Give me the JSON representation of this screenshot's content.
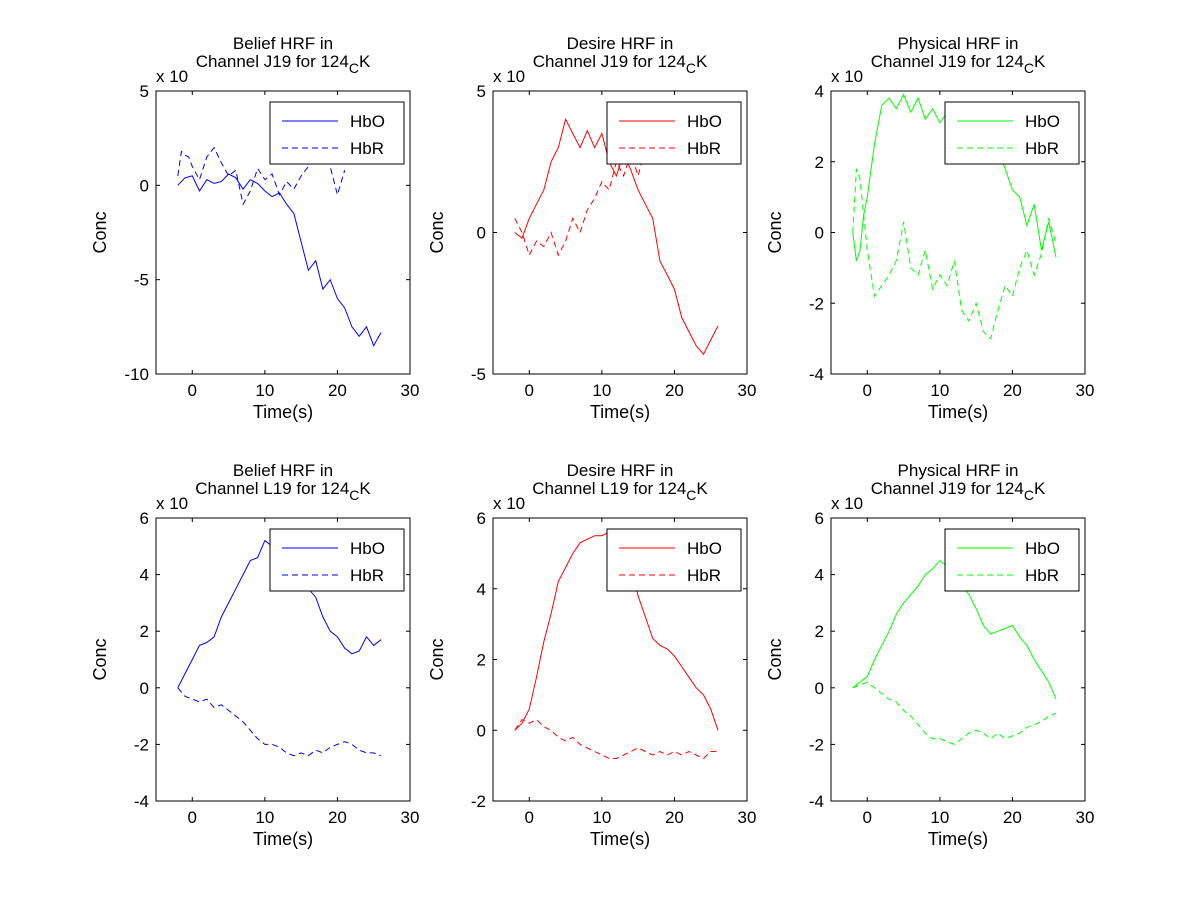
{
  "figure": {
    "background": "#ffffff"
  },
  "chart_data": [
    {
      "type": "line",
      "title": [
        "Belief HRF in",
        "Channel J19 for 124",
        "C",
        "K"
      ],
      "xlabel": "Time(s)",
      "ylabel": "Conc",
      "exponent": "x 10",
      "xlim": [
        -5,
        30
      ],
      "ylim": [
        -10,
        5
      ],
      "xticks": [
        "0",
        "10",
        "20",
        "30"
      ],
      "yticks": [
        "-10",
        "-5",
        "0",
        "5"
      ],
      "xtick_values": [
        0,
        10,
        20,
        30
      ],
      "ytick_values": [
        -10,
        -5,
        0,
        5
      ],
      "legend": "top-right",
      "grid": false,
      "color": "#0000ff",
      "series": [
        {
          "name": "HbO",
          "style": "solid",
          "color": "#0000ff",
          "x": [
            -2,
            -1,
            0,
            1,
            2,
            3,
            4,
            5,
            6,
            7,
            8,
            9,
            10,
            11,
            12,
            13,
            14,
            15,
            16,
            17,
            18,
            19,
            20,
            21,
            22,
            23,
            24,
            25,
            26
          ],
          "y": [
            0.0,
            0.4,
            0.5,
            -0.3,
            0.3,
            0.1,
            0.2,
            0.6,
            0.4,
            -0.2,
            0.3,
            0.1,
            -0.3,
            -0.6,
            -0.4,
            -1.0,
            -1.5,
            -3.0,
            -4.5,
            -4.0,
            -5.5,
            -5.0,
            -6.0,
            -6.5,
            -7.5,
            -8.0,
            -7.5,
            -8.5,
            -7.8
          ]
        },
        {
          "name": "HbR",
          "style": "dashed",
          "color": "#0000ff",
          "x": [
            -2,
            -1.5,
            -1,
            -0.5,
            0,
            1,
            2,
            3,
            4,
            5,
            6,
            7,
            8,
            9,
            10,
            11,
            12,
            13,
            14,
            15,
            16,
            17,
            18,
            19,
            20,
            21
          ],
          "y": [
            0.5,
            1.8,
            1.6,
            1.5,
            1.0,
            0.3,
            1.5,
            2.0,
            1.2,
            0.5,
            0.8,
            -1.0,
            -0.3,
            0.9,
            0.3,
            0.6,
            -0.5,
            0.2,
            -0.2,
            0.5,
            1.0,
            2.0,
            2.5,
            1.0,
            -0.5,
            0.8
          ]
        }
      ]
    },
    {
      "type": "line",
      "title": [
        "Desire HRF in",
        "Channel J19 for 124",
        "C",
        "K"
      ],
      "xlabel": "Time(s)",
      "ylabel": "Conc",
      "exponent": "x 10",
      "xlim": [
        -5,
        30
      ],
      "ylim": [
        -5,
        5
      ],
      "xticks": [
        "0",
        "10",
        "20",
        "30"
      ],
      "yticks": [
        "-5",
        "0",
        "5"
      ],
      "xtick_values": [
        0,
        10,
        20,
        30
      ],
      "ytick_values": [
        -5,
        0,
        5
      ],
      "legend": "top-right",
      "grid": false,
      "color": "#ff0000",
      "series": [
        {
          "name": "HbO",
          "style": "solid",
          "color": "#ff0000",
          "x": [
            -2,
            -1,
            0,
            1,
            2,
            3,
            4,
            5,
            6,
            7,
            8,
            9,
            10,
            11,
            12,
            13,
            14,
            15,
            16,
            17,
            18,
            19,
            20,
            21,
            22,
            23,
            24,
            25,
            26
          ],
          "y": [
            0.0,
            -0.2,
            0.5,
            1.0,
            1.5,
            2.5,
            3.0,
            4.0,
            3.5,
            3.0,
            3.6,
            3.0,
            3.5,
            2.5,
            2.0,
            2.8,
            2.2,
            1.5,
            1.0,
            0.5,
            -1.0,
            -1.5,
            -2.0,
            -3.0,
            -3.5,
            -4.0,
            -4.3,
            -3.8,
            -3.3
          ]
        },
        {
          "name": "HbR",
          "style": "dashed",
          "color": "#ff0000",
          "x": [
            -2,
            -1,
            0,
            1,
            2,
            3,
            4,
            5,
            6,
            7,
            8,
            9,
            10,
            11,
            12,
            13,
            14,
            15,
            16,
            17,
            18,
            19,
            20
          ],
          "y": [
            0.5,
            0.0,
            -0.8,
            -0.3,
            -0.5,
            0.0,
            -0.8,
            -0.3,
            0.5,
            0.0,
            0.8,
            1.2,
            1.8,
            1.5,
            2.5,
            2.0,
            2.8,
            2.0,
            3.0,
            2.5,
            3.2,
            2.5,
            2.8
          ]
        }
      ]
    },
    {
      "type": "line",
      "title": [
        "Physical HRF in",
        "Channel J19 for 124",
        "C",
        "K"
      ],
      "xlabel": "Time(s)",
      "ylabel": "Conc",
      "exponent": "x 10",
      "xlim": [
        -5,
        30
      ],
      "ylim": [
        -4,
        4
      ],
      "xticks": [
        "0",
        "10",
        "20",
        "30"
      ],
      "yticks": [
        "-4",
        "-2",
        "0",
        "2",
        "4"
      ],
      "xtick_values": [
        0,
        10,
        20,
        30
      ],
      "ytick_values": [
        -4,
        -2,
        0,
        2,
        4
      ],
      "legend": "top-right",
      "grid": false,
      "color": "#00ff00",
      "series": [
        {
          "name": "HbO",
          "style": "solid",
          "color": "#00ff00",
          "x": [
            -2,
            -1.5,
            -1,
            -0.5,
            0,
            1,
            2,
            3,
            4,
            5,
            6,
            7,
            8,
            9,
            10,
            11,
            12,
            13,
            14,
            15,
            16,
            17,
            18,
            19,
            20,
            21,
            22,
            23,
            24,
            25,
            26
          ],
          "y": [
            0.0,
            -0.8,
            -0.5,
            0.5,
            1.0,
            2.5,
            3.6,
            3.8,
            3.5,
            3.9,
            3.4,
            3.8,
            3.2,
            3.5,
            3.1,
            3.4,
            2.8,
            3.0,
            2.6,
            2.2,
            2.5,
            2.0,
            2.3,
            1.8,
            1.2,
            1.0,
            0.2,
            0.8,
            -0.5,
            0.3,
            -0.7
          ]
        },
        {
          "name": "HbR",
          "style": "dashed",
          "color": "#00ff00",
          "x": [
            -2,
            -1.5,
            -1,
            -0.5,
            0,
            1,
            2,
            3,
            4,
            5,
            6,
            7,
            8,
            9,
            10,
            11,
            12,
            13,
            14,
            15,
            16,
            17,
            18,
            19,
            20,
            21,
            22,
            23,
            24,
            25,
            26
          ],
          "y": [
            0.0,
            1.8,
            1.5,
            0.5,
            -0.5,
            -1.8,
            -1.5,
            -1.2,
            -0.8,
            0.3,
            -1.0,
            -1.2,
            -0.5,
            -1.6,
            -1.2,
            -1.5,
            -0.8,
            -2.2,
            -2.5,
            -2.0,
            -2.8,
            -3.0,
            -2.2,
            -1.5,
            -1.8,
            -1.0,
            -0.5,
            -1.2,
            -0.6,
            0.4,
            -0.3
          ]
        }
      ]
    },
    {
      "type": "line",
      "title": [
        "Belief HRF in",
        "Channel L19 for 124",
        "C",
        "K"
      ],
      "xlabel": "Time(s)",
      "ylabel": "Conc",
      "exponent": "x 10",
      "xlim": [
        -5,
        30
      ],
      "ylim": [
        -4,
        6
      ],
      "xticks": [
        "0",
        "10",
        "20",
        "30"
      ],
      "yticks": [
        "-4",
        "-2",
        "0",
        "2",
        "4",
        "6"
      ],
      "xtick_values": [
        0,
        10,
        20,
        30
      ],
      "ytick_values": [
        -4,
        -2,
        0,
        2,
        4,
        6
      ],
      "legend": "top-right",
      "grid": false,
      "color": "#0000ff",
      "series": [
        {
          "name": "HbO",
          "style": "solid",
          "color": "#0000ff",
          "x": [
            -2,
            -1,
            0,
            1,
            2,
            3,
            4,
            5,
            6,
            7,
            8,
            9,
            10,
            11,
            12,
            13,
            14,
            15,
            16,
            17,
            18,
            19,
            20,
            21,
            22,
            23,
            24,
            25,
            26
          ],
          "y": [
            0.0,
            0.5,
            1.0,
            1.5,
            1.6,
            1.8,
            2.5,
            3.0,
            3.5,
            4.0,
            4.5,
            4.6,
            5.2,
            5.0,
            5.1,
            4.8,
            4.6,
            4.2,
            3.5,
            3.2,
            2.5,
            2.0,
            1.8,
            1.4,
            1.2,
            1.3,
            1.8,
            1.5,
            1.7
          ]
        },
        {
          "name": "HbR",
          "style": "dashed",
          "color": "#0000ff",
          "x": [
            -2,
            -1,
            0,
            1,
            2,
            3,
            4,
            5,
            6,
            7,
            8,
            9,
            10,
            11,
            12,
            13,
            14,
            15,
            16,
            17,
            18,
            19,
            20,
            21,
            22,
            23,
            24,
            25,
            26
          ],
          "y": [
            0.0,
            -0.3,
            -0.4,
            -0.5,
            -0.4,
            -0.7,
            -0.6,
            -0.8,
            -1.0,
            -1.2,
            -1.5,
            -1.8,
            -2.0,
            -2.0,
            -2.1,
            -2.3,
            -2.4,
            -2.3,
            -2.4,
            -2.2,
            -2.3,
            -2.1,
            -2.0,
            -1.9,
            -2.0,
            -2.2,
            -2.3,
            -2.3,
            -2.4
          ]
        }
      ]
    },
    {
      "type": "line",
      "title": [
        "Desire HRF in",
        "Channel L19 for 124",
        "C",
        "K"
      ],
      "xlabel": "Time(s)",
      "ylabel": "Conc",
      "exponent": "x 10",
      "xlim": [
        -5,
        30
      ],
      "ylim": [
        -2,
        6
      ],
      "xticks": [
        "0",
        "10",
        "20",
        "30"
      ],
      "yticks": [
        "-2",
        "0",
        "2",
        "4",
        "6"
      ],
      "xtick_values": [
        0,
        10,
        20,
        30
      ],
      "ytick_values": [
        -2,
        0,
        2,
        4,
        6
      ],
      "legend": "top-right",
      "grid": false,
      "color": "#ff0000",
      "series": [
        {
          "name": "HbO",
          "style": "solid",
          "color": "#ff0000",
          "x": [
            -2,
            -1,
            0,
            1,
            2,
            3,
            4,
            5,
            6,
            7,
            8,
            9,
            10,
            11,
            12,
            13,
            14,
            15,
            16,
            17,
            18,
            19,
            20,
            21,
            22,
            23,
            24,
            25,
            26
          ],
          "y": [
            0.0,
            0.2,
            0.6,
            1.5,
            2.5,
            3.3,
            4.2,
            4.6,
            5.0,
            5.3,
            5.4,
            5.5,
            5.5,
            5.6,
            5.4,
            5.2,
            4.6,
            3.8,
            3.2,
            2.6,
            2.4,
            2.3,
            2.1,
            1.8,
            1.5,
            1.2,
            1.0,
            0.6,
            0.0
          ]
        },
        {
          "name": "HbR",
          "style": "dashed",
          "color": "#ff0000",
          "x": [
            -2,
            -1,
            0,
            1,
            2,
            3,
            4,
            5,
            6,
            7,
            8,
            9,
            10,
            11,
            12,
            13,
            14,
            15,
            16,
            17,
            18,
            19,
            20,
            21,
            22,
            23,
            24,
            25,
            26
          ],
          "y": [
            0.0,
            0.3,
            0.2,
            0.3,
            0.1,
            0.0,
            -0.2,
            -0.3,
            -0.2,
            -0.4,
            -0.5,
            -0.6,
            -0.7,
            -0.8,
            -0.8,
            -0.7,
            -0.6,
            -0.5,
            -0.6,
            -0.7,
            -0.6,
            -0.7,
            -0.6,
            -0.7,
            -0.6,
            -0.7,
            -0.8,
            -0.6,
            -0.6
          ]
        }
      ]
    },
    {
      "type": "line",
      "title": [
        "Physical HRF in",
        "Channel J19 for 124",
        "C",
        "K"
      ],
      "xlabel": "Time(s)",
      "ylabel": "Conc",
      "exponent": "x 10",
      "xlim": [
        -5,
        30
      ],
      "ylim": [
        -4,
        6
      ],
      "xticks": [
        "0",
        "10",
        "20",
        "30"
      ],
      "yticks": [
        "-4",
        "-2",
        "0",
        "2",
        "4",
        "6"
      ],
      "xtick_values": [
        0,
        10,
        20,
        30
      ],
      "ytick_values": [
        -4,
        -2,
        0,
        2,
        4,
        6
      ],
      "legend": "top-right",
      "grid": false,
      "color": "#00ff00",
      "series": [
        {
          "name": "HbO",
          "style": "solid",
          "color": "#00ff00",
          "x": [
            -2,
            -1,
            0,
            1,
            2,
            3,
            4,
            5,
            6,
            7,
            8,
            9,
            10,
            11,
            12,
            13,
            14,
            15,
            16,
            17,
            18,
            19,
            20,
            21,
            22,
            23,
            24,
            25,
            26
          ],
          "y": [
            0.0,
            0.2,
            0.4,
            1.0,
            1.5,
            2.0,
            2.6,
            3.0,
            3.3,
            3.6,
            4.0,
            4.2,
            4.5,
            4.3,
            4.0,
            3.6,
            3.3,
            2.8,
            2.2,
            1.9,
            2.0,
            2.1,
            2.2,
            1.8,
            1.5,
            1.0,
            0.6,
            0.2,
            -0.4
          ]
        },
        {
          "name": "HbR",
          "style": "dashed",
          "color": "#00ff00",
          "x": [
            -2,
            -1,
            0,
            1,
            2,
            3,
            4,
            5,
            6,
            7,
            8,
            9,
            10,
            11,
            12,
            13,
            14,
            15,
            16,
            17,
            18,
            19,
            20,
            21,
            22,
            23,
            24,
            25,
            26
          ],
          "y": [
            0.0,
            0.1,
            0.2,
            0.0,
            -0.2,
            -0.4,
            -0.5,
            -0.8,
            -1.0,
            -1.3,
            -1.6,
            -1.8,
            -1.8,
            -1.9,
            -2.0,
            -1.8,
            -1.6,
            -1.5,
            -1.6,
            -1.8,
            -1.6,
            -1.8,
            -1.7,
            -1.6,
            -1.4,
            -1.3,
            -1.2,
            -1.0,
            -0.9
          ]
        }
      ]
    }
  ]
}
